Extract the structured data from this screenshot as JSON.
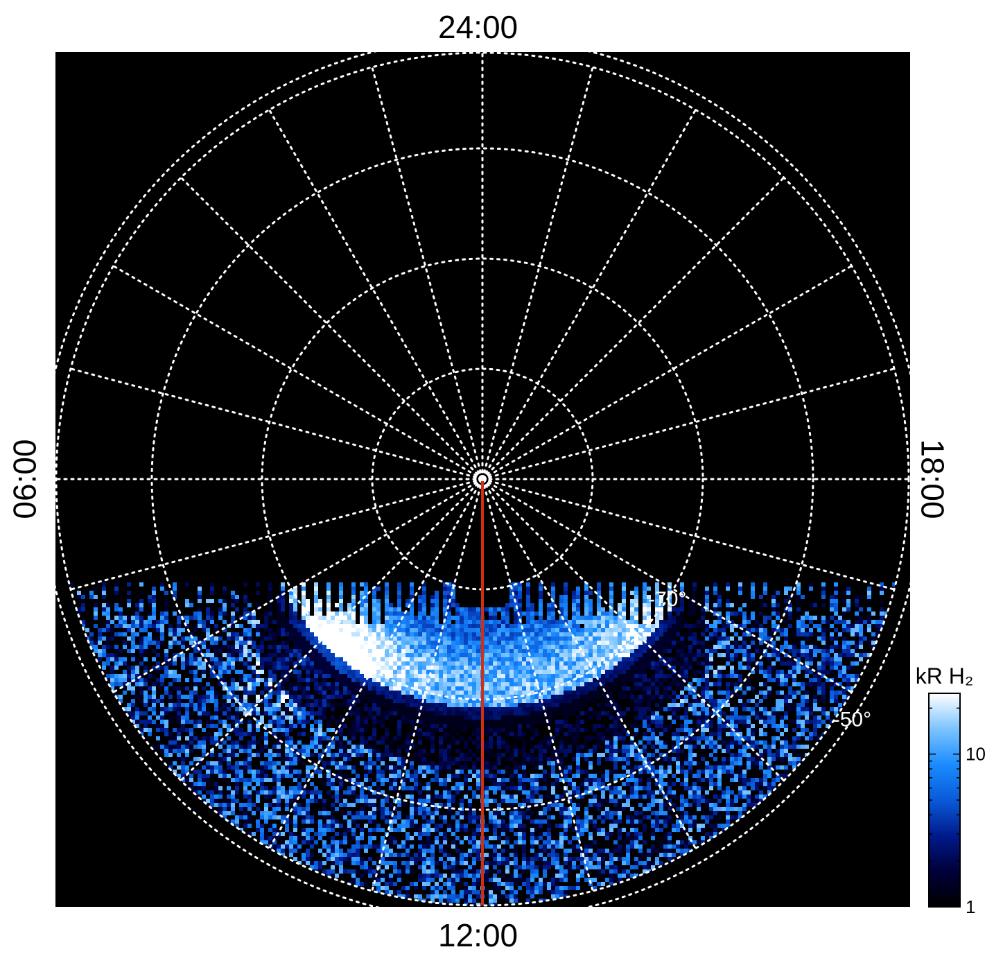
{
  "local_time_labels": {
    "top": "24:00",
    "bottom": "12:00",
    "left": "06:00",
    "right": "18:00"
  },
  "latitude_labels": [
    {
      "text": "-70°",
      "latitude_deg": -70
    },
    {
      "text": "-50°",
      "latitude_deg": -50
    }
  ],
  "colorbar": {
    "label": "kR H₂",
    "tick_labels": [
      "10",
      "1"
    ],
    "scale": "log",
    "range_kR": [
      1,
      25
    ],
    "color_stops": [
      "#000000",
      "#00003a",
      "#001a8c",
      "#0a5ad8",
      "#1a8cff",
      "#7cc4ff",
      "#ffffff"
    ]
  },
  "projection": {
    "type": "polar south-pole view",
    "latitude_rings_deg": [
      -50,
      -60,
      -70,
      -80,
      -90
    ],
    "meridian_step_hours": 1,
    "observed_region": "dayside sector, approx. 07:30–16:30 LT",
    "meridian_line_color": "#d03010"
  },
  "colors": {
    "background": "#000000",
    "grid": "#ffffff",
    "frame_outside": "#ffffff"
  }
}
